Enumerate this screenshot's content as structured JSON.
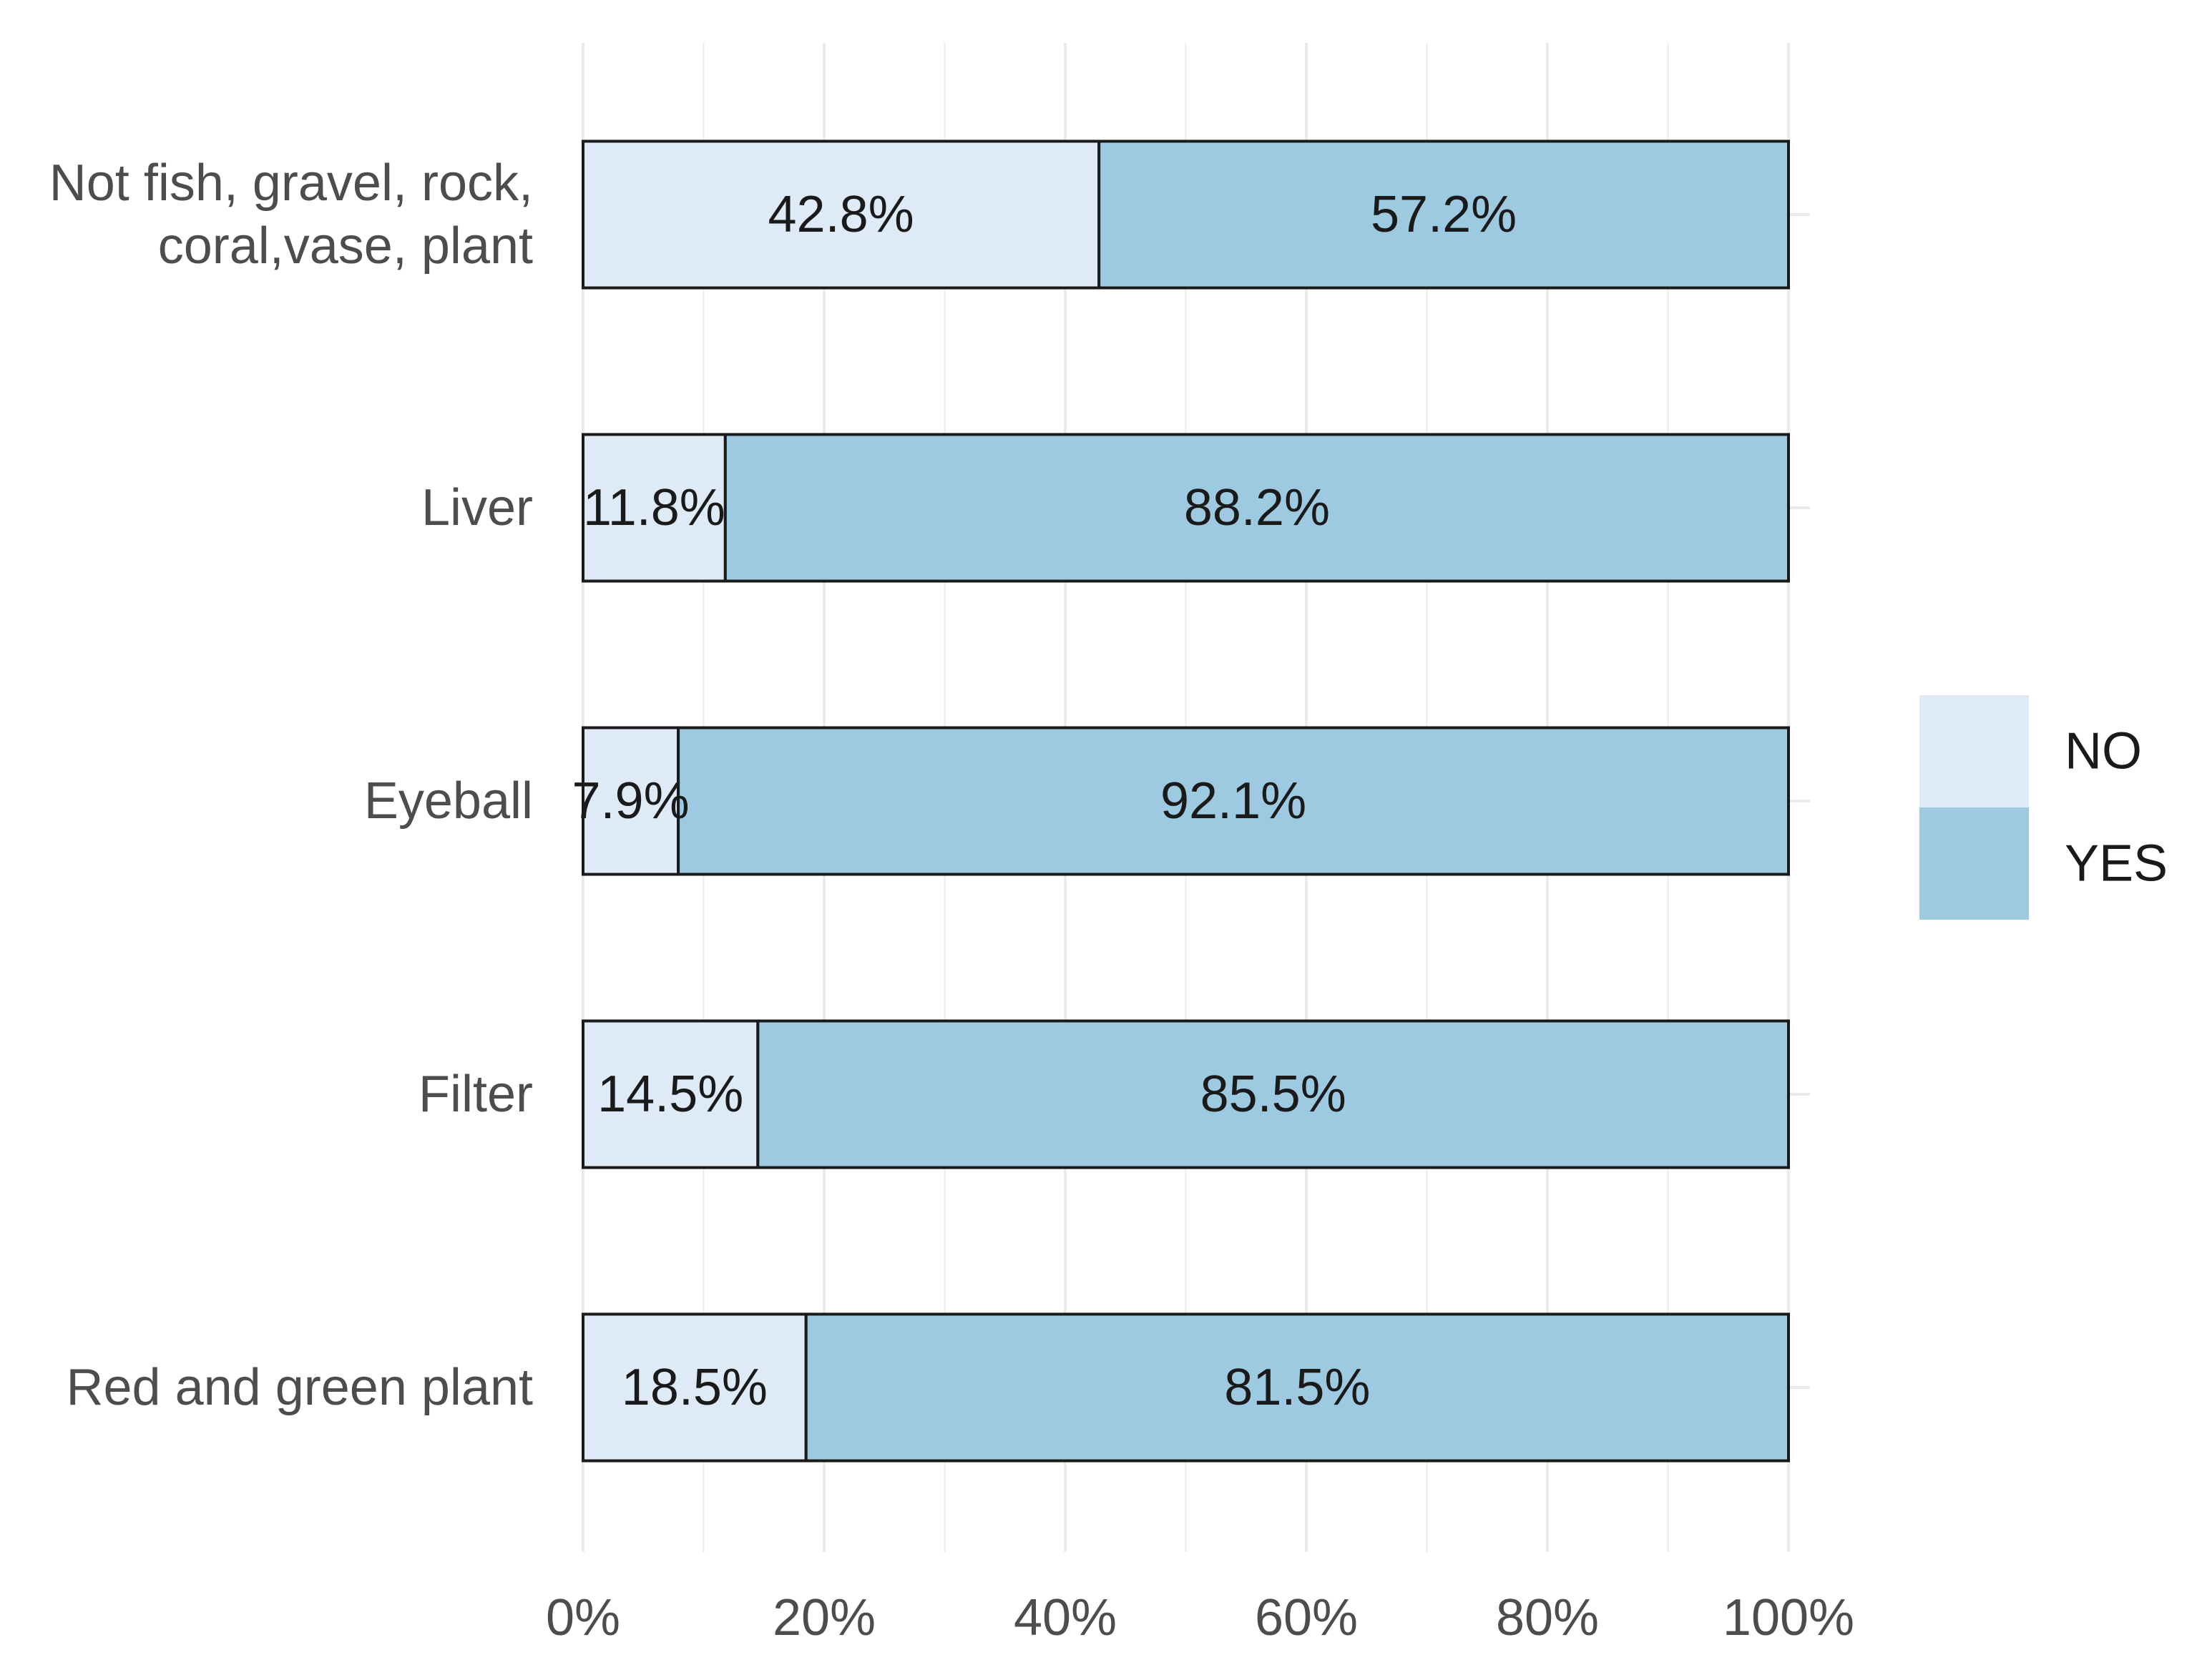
{
  "chart_data": {
    "type": "bar",
    "orientation": "horizontal",
    "stacked": true,
    "percent": true,
    "title": "",
    "xlabel": "",
    "ylabel": "",
    "xlim": [
      0,
      100
    ],
    "x_ticks": [
      0,
      20,
      40,
      60,
      80,
      100
    ],
    "x_tick_labels": [
      "0%",
      "20%",
      "40%",
      "60%",
      "80%",
      "100%"
    ],
    "grid": true,
    "legend_position": "right",
    "categories": [
      {
        "lines": [
          "Not fish, gravel, rock,",
          "coral,vase, plant"
        ]
      },
      {
        "lines": [
          "Liver"
        ]
      },
      {
        "lines": [
          "Eyeball"
        ]
      },
      {
        "lines": [
          "Filter"
        ]
      },
      {
        "lines": [
          "Red and green plant"
        ]
      }
    ],
    "series": [
      {
        "name": "NO",
        "color": "#deebf7",
        "values": [
          42.8,
          11.8,
          7.9,
          14.5,
          18.5
        ],
        "labels": [
          "42.8%",
          "11.8%",
          "7.9%",
          "14.5%",
          "18.5%"
        ]
      },
      {
        "name": "YES",
        "color": "#9ecae1",
        "values": [
          57.2,
          88.2,
          92.1,
          85.5,
          81.5
        ],
        "labels": [
          "57.2%",
          "88.2%",
          "92.1%",
          "85.5%",
          "81.5%"
        ]
      }
    ],
    "colors": {
      "grid": "#ebebeb",
      "bar_outline": "#1a1a1a",
      "axis_text": "#4d4d4d",
      "label_text": "#1a1a1a"
    }
  }
}
